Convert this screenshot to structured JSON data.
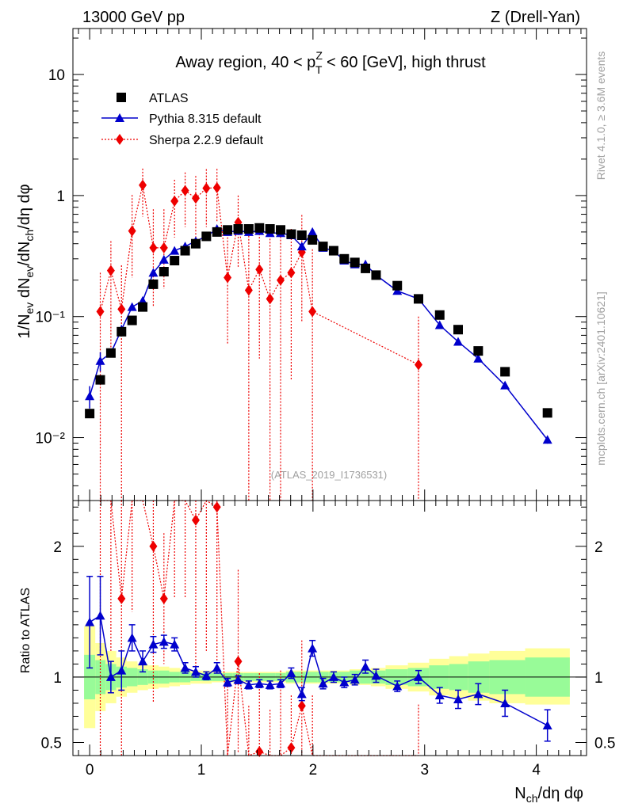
{
  "header": {
    "left_label": "13000 GeV pp",
    "right_label": "Z (Drell-Yan)"
  },
  "side_labels": {
    "rivet": "Rivet 4.1.0, ≥ 3.6M events",
    "mcplots": "mcplots.cern.ch [arXiv:2401.10621]"
  },
  "colors": {
    "atlas": "#000000",
    "pythia": "#0000cc",
    "sherpa": "#ee0000",
    "band_inner": "#98fb98",
    "band_outer": "#ffff99",
    "watermark": "#a0a0a0"
  },
  "chart_data": {
    "type": "scatter",
    "title": {
      "prefix": "Away region, 40 < p",
      "sup": "Z",
      "sub": "T",
      "suffix": " < 60 [GeV], high thrust"
    },
    "watermark": "(ATLAS_2019_I1736531)",
    "main_ylabel": "1/N_ev dN_ev/dN_ch/dη dφ",
    "ratio_ylabel": "Ratio to ATLAS",
    "xlabel": "N_ch/dη dφ",
    "x_ticks": [
      "0",
      "1",
      "2",
      "3",
      "4"
    ],
    "main_y_ticks": [
      "10⁻²",
      "10⁻¹",
      "1",
      "10"
    ],
    "ratio_y_ticks": [
      "0.5",
      "1",
      "2"
    ],
    "xlim": [
      -0.15,
      4.45
    ],
    "main_ylim_log10": [
      -2.52,
      1.38
    ],
    "ratio_ylim": [
      0.4,
      2.35
    ],
    "legend": [
      "ATLAS",
      "Pythia 8.315 default",
      "Sherpa 2.2.9 default"
    ],
    "atlas": {
      "x": [
        0.0,
        0.095,
        0.19,
        0.285,
        0.38,
        0.475,
        0.57,
        0.665,
        0.76,
        0.855,
        0.95,
        1.045,
        1.14,
        1.235,
        1.33,
        1.425,
        1.52,
        1.615,
        1.71,
        1.805,
        1.9,
        1.995,
        2.09,
        2.185,
        2.28,
        2.375,
        2.47,
        2.565,
        2.755,
        2.945,
        3.135,
        3.3,
        3.48,
        3.72,
        4.1
      ],
      "y": [
        0.0158,
        0.03,
        0.05,
        0.075,
        0.093,
        0.12,
        0.185,
        0.235,
        0.29,
        0.35,
        0.4,
        0.46,
        0.5,
        0.52,
        0.53,
        0.53,
        0.54,
        0.53,
        0.52,
        0.48,
        0.47,
        0.43,
        0.38,
        0.35,
        0.3,
        0.28,
        0.25,
        0.22,
        0.18,
        0.14,
        0.103,
        0.078,
        0.052,
        0.035,
        0.016
      ],
      "band_x_edges": [
        -0.05,
        0.05,
        0.143,
        0.238,
        0.333,
        0.428,
        0.523,
        0.618,
        0.713,
        0.808,
        0.903,
        0.998,
        1.093,
        1.188,
        1.283,
        1.378,
        1.473,
        1.568,
        1.663,
        1.758,
        1.853,
        1.948,
        2.043,
        2.138,
        2.233,
        2.328,
        2.423,
        2.518,
        2.65,
        2.85,
        3.04,
        3.22,
        3.39,
        3.58,
        3.9,
        4.3
      ],
      "stat_sys_lo": [
        0.83,
        0.87,
        0.9,
        0.92,
        0.93,
        0.94,
        0.95,
        0.95,
        0.96,
        0.96,
        0.97,
        0.97,
        0.97,
        0.97,
        0.97,
        0.97,
        0.97,
        0.97,
        0.97,
        0.96,
        0.96,
        0.96,
        0.96,
        0.96,
        0.96,
        0.95,
        0.95,
        0.95,
        0.94,
        0.93,
        0.91,
        0.9,
        0.88,
        0.87,
        0.85
      ],
      "stat_sys_hi": [
        1.17,
        1.13,
        1.1,
        1.08,
        1.07,
        1.06,
        1.05,
        1.05,
        1.04,
        1.04,
        1.03,
        1.03,
        1.03,
        1.03,
        1.03,
        1.03,
        1.03,
        1.03,
        1.03,
        1.04,
        1.04,
        1.04,
        1.04,
        1.04,
        1.04,
        1.05,
        1.05,
        1.05,
        1.06,
        1.07,
        1.09,
        1.1,
        1.12,
        1.13,
        1.15
      ],
      "total_lo": [
        0.61,
        0.74,
        0.8,
        0.85,
        0.88,
        0.9,
        0.91,
        0.92,
        0.93,
        0.94,
        0.95,
        0.95,
        0.96,
        0.96,
        0.96,
        0.96,
        0.96,
        0.96,
        0.96,
        0.95,
        0.95,
        0.95,
        0.95,
        0.95,
        0.95,
        0.94,
        0.94,
        0.93,
        0.91,
        0.89,
        0.86,
        0.84,
        0.82,
        0.8,
        0.79
      ],
      "total_hi": [
        1.39,
        1.26,
        1.2,
        1.15,
        1.12,
        1.1,
        1.09,
        1.08,
        1.07,
        1.06,
        1.05,
        1.05,
        1.04,
        1.04,
        1.04,
        1.04,
        1.04,
        1.04,
        1.04,
        1.05,
        1.05,
        1.05,
        1.05,
        1.05,
        1.05,
        1.06,
        1.06,
        1.07,
        1.09,
        1.11,
        1.14,
        1.16,
        1.18,
        1.2,
        1.22
      ]
    },
    "pythia": {
      "x": [
        0.0,
        0.095,
        0.19,
        0.285,
        0.38,
        0.475,
        0.57,
        0.665,
        0.76,
        0.855,
        0.95,
        1.045,
        1.14,
        1.235,
        1.33,
        1.425,
        1.52,
        1.615,
        1.71,
        1.805,
        1.9,
        1.995,
        2.09,
        2.185,
        2.28,
        2.375,
        2.47,
        2.565,
        2.755,
        2.945,
        3.135,
        3.3,
        3.48,
        3.72,
        4.1
      ],
      "y": [
        0.022,
        0.043,
        0.05,
        0.078,
        0.12,
        0.135,
        0.23,
        0.295,
        0.35,
        0.38,
        0.42,
        0.46,
        0.53,
        0.5,
        0.51,
        0.5,
        0.51,
        0.49,
        0.49,
        0.47,
        0.38,
        0.5,
        0.37,
        0.35,
        0.29,
        0.27,
        0.27,
        0.22,
        0.163,
        0.14,
        0.085,
        0.062,
        0.045,
        0.027,
        0.0096
      ],
      "ratio": [
        1.42,
        1.47,
        1.0,
        1.05,
        1.3,
        1.12,
        1.25,
        1.27,
        1.25,
        1.07,
        1.04,
        1.01,
        1.07,
        0.96,
        0.98,
        0.94,
        0.95,
        0.94,
        0.95,
        1.03,
        0.87,
        1.22,
        0.95,
        1.0,
        0.96,
        0.98,
        1.08,
        1.01,
        0.93,
        1.0,
        0.86,
        0.83,
        0.87,
        0.8,
        0.63
      ],
      "ratio_err": [
        0.35,
        0.3,
        0.12,
        0.15,
        0.1,
        0.08,
        0.06,
        0.05,
        0.05,
        0.04,
        0.04,
        0.03,
        0.04,
        0.03,
        0.03,
        0.03,
        0.03,
        0.03,
        0.03,
        0.04,
        0.05,
        0.06,
        0.04,
        0.04,
        0.04,
        0.04,
        0.05,
        0.05,
        0.04,
        0.05,
        0.06,
        0.07,
        0.08,
        0.1,
        0.12
      ]
    },
    "sherpa": {
      "x": [
        0.095,
        0.19,
        0.285,
        0.38,
        0.475,
        0.57,
        0.665,
        0.76,
        0.855,
        0.95,
        1.045,
        1.14,
        1.235,
        1.33,
        1.425,
        1.52,
        1.615,
        1.71,
        1.805,
        1.9,
        1.995,
        2.945
      ],
      "y": [
        0.11,
        0.24,
        0.115,
        0.51,
        1.22,
        0.37,
        0.37,
        0.9,
        1.1,
        0.95,
        1.15,
        1.16,
        0.21,
        0.6,
        0.165,
        0.245,
        0.14,
        0.2,
        0.23,
        0.34,
        0.11,
        0.04
      ],
      "y_err_lo": [
        0.11,
        0.19,
        0.115,
        0.3,
        0.55,
        0.25,
        0.2,
        0.45,
        0.55,
        0.5,
        0.6,
        0.55,
        0.15,
        0.35,
        0.165,
        0.2,
        0.14,
        0.2,
        0.2,
        0.25,
        0.11,
        0.04
      ],
      "y_err_hi": [
        0.12,
        0.18,
        0.15,
        0.5,
        0.45,
        0.4,
        0.4,
        0.45,
        0.45,
        0.5,
        0.5,
        0.5,
        0.3,
        0.4,
        0.3,
        0.3,
        0.3,
        0.35,
        0.3,
        0.35,
        0.25,
        0.06
      ],
      "ratio": [
        3.6,
        4.7,
        1.6,
        5.5,
        10.1,
        2.0,
        1.6,
        3.1,
        3.1,
        2.2,
        2.5,
        2.3,
        0.38,
        1.12,
        0.28,
        0.43,
        0.25,
        0.35,
        0.46,
        0.78,
        0.26,
        0.29
      ],
      "ratio_err": [
        3.6,
        3.5,
        1.5,
        4.0,
        5.0,
        1.2,
        0.5,
        1.5,
        1.5,
        1.2,
        1.3,
        1.2,
        0.6,
        0.7,
        0.5,
        0.6,
        0.5,
        0.7,
        0.4,
        0.5,
        0.6,
        0.5
      ]
    }
  }
}
